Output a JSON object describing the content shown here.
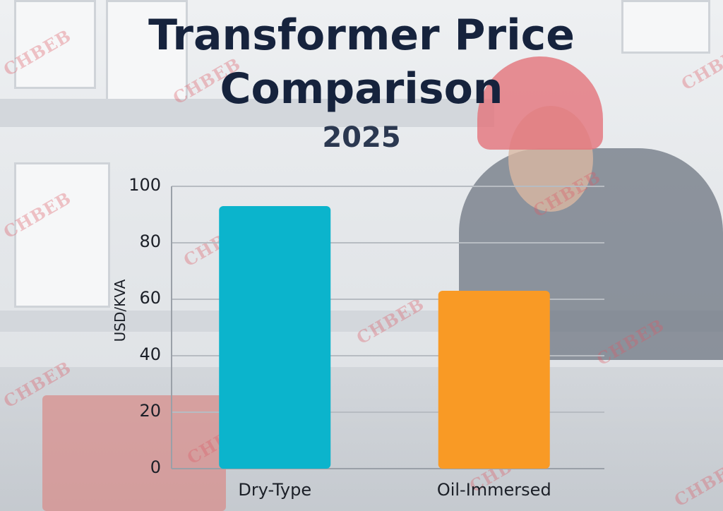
{
  "background": {
    "watermark_text": "CHBEB"
  },
  "chart_data": {
    "type": "bar",
    "title": "Transformer Price Comparison",
    "title_lines": [
      "Transformer Price",
      "Comparison"
    ],
    "subtitle": "2025",
    "xlabel": "",
    "ylabel": "USD/KVA",
    "categories": [
      "Dry-Type",
      "Oil-Immersed"
    ],
    "values": [
      93,
      63
    ],
    "colors": [
      "#0bb4cc",
      "#f99a25"
    ],
    "ylim": [
      0,
      100
    ],
    "yticks": [
      0,
      20,
      40,
      60,
      80,
      100
    ],
    "grid": true,
    "legend": "none"
  }
}
